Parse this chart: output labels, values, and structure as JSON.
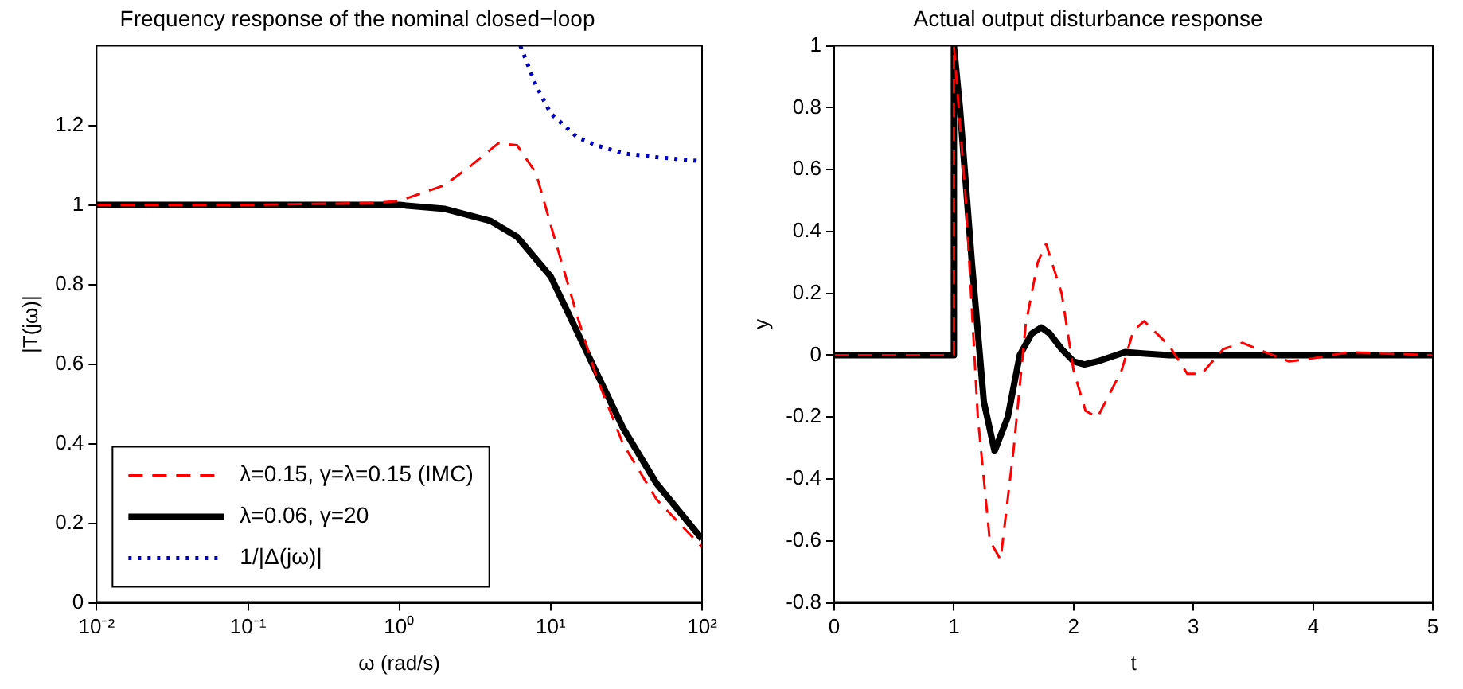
{
  "chart_data": [
    {
      "type": "line",
      "title": "Frequency response of the nominal closed−loop",
      "xlabel": "ω (rad/s)",
      "ylabel": "|T(jω)|",
      "log": "x",
      "xlim": [
        0.01,
        100
      ],
      "xticks": [
        {
          "value": 0.01,
          "label": "10⁻²"
        },
        {
          "value": 0.1,
          "label": "10⁻¹"
        },
        {
          "value": 1,
          "label": "10⁰"
        },
        {
          "value": 10,
          "label": "10¹"
        },
        {
          "value": 100,
          "label": "10²"
        }
      ],
      "ylim": [
        0,
        1.4
      ],
      "yticks": [
        0,
        0.2,
        0.4,
        0.6,
        0.8,
        1,
        1.2
      ],
      "grid": false,
      "legend": "bottom left",
      "marker": "none",
      "series": [
        {
          "name": "λ=0.15, γ=λ=0.15 (IMC)",
          "color": "#ff0000",
          "line_style": "dashed",
          "x": [
            0.01,
            0.1,
            0.7,
            1,
            2,
            3,
            4.5,
            6,
            8,
            10,
            15,
            20,
            30,
            50,
            100
          ],
          "values": [
            1,
            1,
            1.005,
            1.01,
            1.05,
            1.1,
            1.155,
            1.15,
            1.08,
            0.95,
            0.72,
            0.57,
            0.4,
            0.26,
            0.14
          ]
        },
        {
          "name": "λ=0.06, γ=20",
          "color": "#000000",
          "line_style": "solid",
          "x": [
            0.01,
            0.1,
            1,
            2,
            4,
            6,
            10,
            15,
            20,
            30,
            50,
            100
          ],
          "values": [
            1,
            1,
            1,
            0.99,
            0.96,
            0.92,
            0.82,
            0.68,
            0.58,
            0.44,
            0.3,
            0.16
          ]
        },
        {
          "name": "1/|Δ(jω)|",
          "color": "#0000c0",
          "line_style": "dotted",
          "x": [
            6.3,
            8,
            10,
            15,
            20,
            30,
            50,
            100
          ],
          "values": [
            1.4,
            1.3,
            1.23,
            1.17,
            1.15,
            1.13,
            1.12,
            1.11
          ]
        }
      ]
    },
    {
      "type": "line",
      "title": "Actual output disturbance response",
      "xlabel": "t",
      "ylabel": "y",
      "xlim": [
        0,
        5
      ],
      "xticks": [
        0,
        1,
        2,
        3,
        4,
        5
      ],
      "ylim": [
        -0.8,
        1
      ],
      "yticks": [
        -0.8,
        -0.6,
        -0.4,
        -0.2,
        0,
        0.2,
        0.4,
        0.6,
        0.8,
        1
      ],
      "grid": false,
      "legend": false,
      "marker": "none",
      "series": [
        {
          "color": "#ff0000",
          "line_style": "dashed",
          "x": [
            0,
            1,
            1,
            1.1,
            1.2,
            1.3,
            1.39,
            1.5,
            1.6,
            1.7,
            1.77,
            1.9,
            2.0,
            2.1,
            2.2,
            2.4,
            2.5,
            2.59,
            2.8,
            2.95,
            3.07,
            3.25,
            3.41,
            3.6,
            3.8,
            4,
            4.3,
            5
          ],
          "values": [
            0,
            0,
            1,
            0.5,
            -0.2,
            -0.6,
            -0.66,
            -0.3,
            0.1,
            0.3,
            0.36,
            0.2,
            -0.05,
            -0.18,
            -0.2,
            -0.05,
            0.08,
            0.11,
            0.03,
            -0.06,
            -0.06,
            0.02,
            0.04,
            0.01,
            -0.02,
            -0.01,
            0.01,
            0
          ]
        },
        {
          "color": "#000000",
          "line_style": "solid",
          "x": [
            0,
            1,
            1,
            1.05,
            1.15,
            1.25,
            1.34,
            1.45,
            1.55,
            1.65,
            1.73,
            1.8,
            1.9,
            2,
            2.09,
            2.2,
            2.43,
            2.6,
            2.8,
            5
          ],
          "values": [
            0,
            0,
            1,
            0.8,
            0.3,
            -0.15,
            -0.31,
            -0.2,
            0,
            0.07,
            0.09,
            0.07,
            0.02,
            -0.02,
            -0.03,
            -0.02,
            0.01,
            0.005,
            0,
            0
          ]
        }
      ]
    }
  ]
}
